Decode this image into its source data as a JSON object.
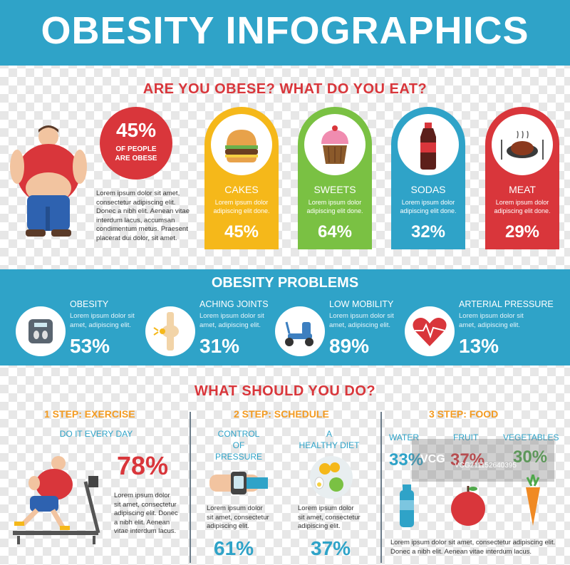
{
  "header": {
    "title": "OBESITY INFOGRAPHICS"
  },
  "section1": {
    "title": "ARE YOU OBESE?  WHAT DO YOU EAT?",
    "stat": {
      "value": "45%",
      "line1": "OF PEOPLE",
      "line2": "ARE OBESE"
    },
    "lorem": [
      "Lorem ipsum dolor sit amet,",
      "consectetur adipiscing elit.",
      "Donec a nibh elit. Aenean vitae",
      "interdum lacus, accumsan",
      "condimentum metus. Praesent",
      "placerat dui dolor, sit amet."
    ]
  },
  "foods": [
    {
      "label": "CAKES",
      "desc": "Lorem ipsum dolor adipiscing elit done.",
      "pct": "45%",
      "color": "#f5b81a",
      "icon": "burger-icon"
    },
    {
      "label": "SWEETS",
      "desc": "Lorem ipsum dolor adipiscing elit done.",
      "pct": "64%",
      "color": "#7ac143",
      "icon": "cupcake-icon"
    },
    {
      "label": "SODAS",
      "desc": "Lorem ipsum dolor adipiscing elit done.",
      "pct": "32%",
      "color": "#2fa3c8",
      "icon": "soda-bottle-icon"
    },
    {
      "label": "MEAT",
      "desc": "Lorem ipsum dolor adipiscing elit done.",
      "pct": "29%",
      "color": "#d9363b",
      "icon": "meat-plate-icon"
    }
  ],
  "problems": {
    "title": "OBESITY PROBLEMS",
    "items": [
      {
        "name": "OBESITY",
        "desc1": "Lorem ipsum dolor sit",
        "desc2": "amet, adipiscing elit.",
        "pct": "53%",
        "icon": "scale-icon"
      },
      {
        "name": "ACHING JOINTS",
        "desc1": "Lorem ipsum dolor sit",
        "desc2": "amet, adipiscing elit.",
        "pct": "31%",
        "icon": "joint-icon"
      },
      {
        "name": "LOW MOBILITY",
        "desc1": "Lorem ipsum dolor sit",
        "desc2": "amet, adipiscing elit.",
        "pct": "89%",
        "icon": "mobility-scooter-icon"
      },
      {
        "name": "ARTERIAL PRESSURE",
        "desc1": "Lorem ipsum dolor sit",
        "desc2": "amet, adipiscing elit.",
        "pct": "13%",
        "icon": "heart-pulse-icon"
      }
    ]
  },
  "todo": {
    "title": "WHAT SHOULD YOU DO?",
    "step1": {
      "title": "1 STEP: EXERCISE",
      "sub": "DO IT EVERY DAY",
      "pct": "78%",
      "lorem": [
        "Lorem ipsum dolor",
        "sit amet, consectetur",
        "adipiscing elit. Donec",
        "a nibh elit. Aenean",
        "vitae interdum lacus."
      ]
    },
    "step2": {
      "title": "2 STEP: SCHEDULE",
      "left": {
        "sub1": "CONTROL",
        "sub2": "OF",
        "sub3": "PRESSURE",
        "lorem": [
          "Lorem ipsum dolor",
          "sit amet, consectetur",
          "adipiscing elit."
        ],
        "pct": "61%"
      },
      "right": {
        "sub1": "A",
        "sub2": "HEALTHY DIET",
        "lorem": [
          "Lorem ipsum dolor",
          "sit amet, consectetur",
          "adipiscing elit."
        ],
        "pct": "37%"
      }
    },
    "step3": {
      "title": "3 STEP: FOOD",
      "water": {
        "label": "WATER",
        "pct": "33%"
      },
      "fruit": {
        "label": "FRUIT",
        "pct": "37%"
      },
      "veg": {
        "label": "VEGETABLES",
        "pct": "30%"
      },
      "lorem": [
        "Lorem ipsum dolor sit amet, consectetur adipiscing elit.",
        "Donec a nibh elit. Aenean vitae interdum lacus."
      ]
    }
  },
  "watermark": {
    "brand": "VCG",
    "code": "VCG211152640395"
  }
}
